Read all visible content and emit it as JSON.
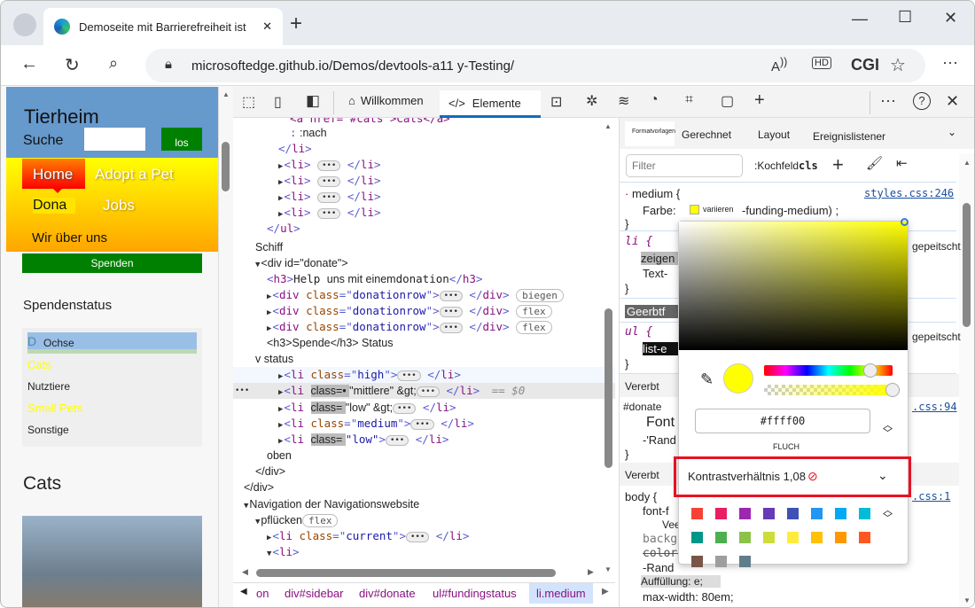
{
  "browser": {
    "tab_title": "Demoseite mit Barrierefreiheit ist",
    "url": "microsoftedge.github.io/Demos/devtools-a11 y-Testing/",
    "profile_label": "CGI"
  },
  "page": {
    "title": "Tierheim",
    "search_label": "Suche",
    "search_button": "los",
    "nav": [
      "Home",
      "Adopt a Pet",
      "Dona",
      "Jobs",
      "Wir über uns"
    ],
    "donate_button": "Spenden",
    "status_heading": "Spendenstatus",
    "status_items": [
      "Ochse",
      "Cats",
      "Nutztiere",
      "Small Pets",
      "Sonstige"
    ],
    "status_first_letter": "D",
    "cats_heading": "Cats"
  },
  "devtools": {
    "tabs": [
      {
        "label": "Willkommen",
        "icon": "home-icon"
      },
      {
        "label": "Elemente",
        "icon": "code-icon"
      }
    ],
    "tool_icons": [
      "console-icon",
      "bug-icon",
      "wifi-icon",
      "performance-icon",
      "memory-chip-icon",
      "application-icon",
      "plus-icon"
    ],
    "dom_lines": [
      {
        "i": 8,
        "p": [
          [
            "tg",
            "<a href=\"#cats\">Cats</a>"
          ]
        ]
      },
      {
        "i": 8,
        "p": [
          [
            "br",
            ":"
          ],
          [
            "tx",
            " :nach"
          ]
        ]
      },
      {
        "i": 7,
        "p": [
          [
            "br",
            "</"
          ],
          [
            "tg",
            "li"
          ],
          [
            "br",
            ">"
          ]
        ]
      },
      {
        "i": 7,
        "a": "r",
        "p": [
          [
            "br",
            "<"
          ],
          [
            "tg",
            "li"
          ],
          [
            "br",
            "> "
          ],
          [
            "e",
            ""
          ],
          [
            "br",
            " </"
          ],
          [
            "tg",
            "li"
          ],
          [
            "br",
            ">"
          ]
        ]
      },
      {
        "i": 7,
        "a": "r",
        "p": [
          [
            "br",
            "<"
          ],
          [
            "tg",
            "li"
          ],
          [
            "br",
            "> "
          ],
          [
            "e",
            ""
          ],
          [
            "br",
            " </"
          ],
          [
            "tg",
            "li"
          ],
          [
            "br",
            ">"
          ]
        ]
      },
      {
        "i": 7,
        "a": "r",
        "p": [
          [
            "br",
            "<"
          ],
          [
            "tg",
            "li"
          ],
          [
            "br",
            "> "
          ],
          [
            "e",
            ""
          ],
          [
            "br",
            " </"
          ],
          [
            "tg",
            "li"
          ],
          [
            "br",
            ">"
          ]
        ]
      },
      {
        "i": 7,
        "a": "r",
        "p": [
          [
            "br",
            "<"
          ],
          [
            "tg",
            "li"
          ],
          [
            "br",
            "> "
          ],
          [
            "e",
            ""
          ],
          [
            "br",
            " </"
          ],
          [
            "tg",
            "li"
          ],
          [
            "br",
            ">"
          ]
        ]
      },
      {
        "i": 6,
        "p": [
          [
            "br",
            "</"
          ],
          [
            "tg",
            "ul"
          ],
          [
            "br",
            ">"
          ]
        ]
      },
      {
        "i": 5,
        "p": [
          [
            "tx",
            "Schiff"
          ]
        ]
      },
      {
        "i": 5,
        "a": "d",
        "p": [
          [
            "tx",
            "<div id=\"donate\">"
          ]
        ]
      },
      {
        "i": 6,
        "p": [
          [
            "br",
            "<"
          ],
          [
            "tg",
            "h3"
          ],
          [
            "br",
            ">"
          ],
          [
            "tx2",
            "Help "
          ],
          [
            "tx",
            "uns mit einem"
          ],
          [
            "tx2",
            "donation"
          ],
          [
            "br",
            "</"
          ],
          [
            "tg",
            "h3"
          ],
          [
            "br",
            ">"
          ]
        ]
      },
      {
        "i": 6,
        "a": "r",
        "p": [
          [
            "br",
            "<"
          ],
          [
            "tg",
            "div "
          ],
          [
            "at",
            "class"
          ],
          [
            "br",
            "=\""
          ],
          [
            "av",
            "donationrow"
          ],
          [
            "br",
            "\">"
          ],
          [
            "e",
            ""
          ],
          [
            "br",
            " </"
          ],
          [
            "tg",
            "div"
          ],
          [
            "br",
            "> "
          ],
          [
            "b",
            "biegen"
          ]
        ]
      },
      {
        "i": 6,
        "a": "r",
        "p": [
          [
            "br",
            "<"
          ],
          [
            "tg",
            "div "
          ],
          [
            "at",
            "class"
          ],
          [
            "br",
            "=\""
          ],
          [
            "av",
            "donationrow"
          ],
          [
            "br",
            "\">"
          ],
          [
            "e",
            ""
          ],
          [
            "br",
            " </"
          ],
          [
            "tg",
            "div"
          ],
          [
            "br",
            "> "
          ],
          [
            "b",
            "flex"
          ]
        ]
      },
      {
        "i": 6,
        "a": "r",
        "p": [
          [
            "br",
            "<"
          ],
          [
            "tg",
            "div "
          ],
          [
            "at",
            "class"
          ],
          [
            "br",
            "=\""
          ],
          [
            "av",
            "donationrow"
          ],
          [
            "br",
            "\">"
          ],
          [
            "e",
            ""
          ],
          [
            "br",
            " </"
          ],
          [
            "tg",
            "div"
          ],
          [
            "br",
            "> "
          ],
          [
            "b",
            "flex"
          ]
        ]
      },
      {
        "i": 6,
        "p": [
          [
            "tx",
            "<h3>Spende</h3>   Status"
          ]
        ]
      },
      {
        "i": 5,
        "p": [
          [
            "tx",
            "v status"
          ]
        ]
      },
      {
        "i": 7,
        "a": "r",
        "p": [
          [
            "br",
            "<"
          ],
          [
            "tg",
            "li "
          ],
          [
            "at",
            "class"
          ],
          [
            "br",
            "=\""
          ],
          [
            "av",
            "high"
          ],
          [
            "br",
            "\">"
          ],
          [
            "e",
            ""
          ],
          [
            "br",
            " </"
          ],
          [
            "tg",
            "li"
          ],
          [
            "br",
            ">"
          ]
        ]
      },
      {
        "i": 7,
        "a": "r",
        "sel": true,
        "p": [
          [
            "br",
            "<"
          ],
          [
            "tg",
            "li "
          ],
          [
            "tx",
            "class=• "
          ],
          [
            "tx",
            " \"mittlere\" &gt;"
          ],
          [
            "e",
            ""
          ],
          [
            "br",
            " </"
          ],
          [
            "tg",
            "li"
          ],
          [
            "br",
            "> "
          ],
          [
            "dim",
            "== $0"
          ]
        ]
      },
      {
        "i": 7,
        "a": "r",
        "p": [
          [
            "br",
            "<"
          ],
          [
            "tg",
            "li "
          ],
          [
            "tx",
            "class=  "
          ],
          [
            "tx",
            " \"low\" &gt;"
          ],
          [
            "e",
            ""
          ],
          [
            "br",
            " </"
          ],
          [
            "tg",
            "li"
          ],
          [
            "br",
            ">"
          ]
        ]
      },
      {
        "i": 7,
        "a": "r",
        "p": [
          [
            "br",
            "<"
          ],
          [
            "tg",
            "li "
          ],
          [
            "at",
            "class"
          ],
          [
            "br",
            "=\""
          ],
          [
            "av",
            "medium"
          ],
          [
            "br",
            "\">"
          ],
          [
            "e",
            ""
          ],
          [
            "br",
            " </"
          ],
          [
            "tg",
            "li"
          ],
          [
            "br",
            ">"
          ]
        ]
      },
      {
        "i": 7,
        "a": "r",
        "p": [
          [
            "br",
            "<"
          ],
          [
            "tg",
            "li "
          ],
          [
            "tx",
            "class=  "
          ],
          [
            "av",
            " \"low\""
          ],
          [
            "br",
            ">"
          ],
          [
            "e",
            ""
          ],
          [
            "br",
            " </"
          ],
          [
            "tg",
            "li"
          ],
          [
            "br",
            ">"
          ]
        ]
      },
      {
        "i": 6,
        "p": [
          [
            "tx",
            "oben"
          ]
        ]
      },
      {
        "i": 5,
        "p": [
          [
            "tx",
            "</div>"
          ]
        ]
      },
      {
        "i": 4,
        "p": [
          [
            "tx",
            "</div>"
          ]
        ]
      },
      {
        "i": 4,
        "a": "d",
        "p": [
          [
            "tx",
            "Navigation der Navigationswebsite"
          ]
        ]
      },
      {
        "i": 5,
        "a": "d",
        "p": [
          [
            "tx",
            "pflücken"
          ],
          [
            "b",
            "flex"
          ]
        ]
      },
      {
        "i": 6,
        "a": "r",
        "p": [
          [
            "br",
            "<"
          ],
          [
            "tg",
            "li "
          ],
          [
            "at",
            "class"
          ],
          [
            "br",
            "=\""
          ],
          [
            "av",
            "current"
          ],
          [
            "br",
            "\">"
          ],
          [
            "e",
            ""
          ],
          [
            "br",
            " </"
          ],
          [
            "tg",
            "li"
          ],
          [
            "br",
            ">"
          ]
        ]
      },
      {
        "i": 6,
        "a": "d",
        "p": [
          [
            "br",
            "<"
          ],
          [
            "tg",
            "li"
          ],
          [
            "br",
            ">"
          ]
        ]
      }
    ],
    "breadcrumbs": [
      "on",
      "div#sidebar",
      "div#donate",
      "ul#fundingstatus",
      "li.medium"
    ],
    "styles_tabs": [
      "Formatvorlagen",
      "Gerechnet",
      "Layout",
      "Ereignislistener"
    ],
    "filter_placeholder": "Filter",
    "hov_label": ":Kochfeld",
    "cls_label": "cls",
    "rules": {
      "r1_selector": "medium {",
      "r1_source": "styles.css:246",
      "r1_prop": "Farbe:",
      "r1_var": "variieren",
      "r1_value": "-funding-medium) ;",
      "r2_selector": "li {",
      "r2_prop1": "zeigen",
      "r2_prop2": "Text-",
      "r2_note": "gepeitscht",
      "inherited1": "Geerbtf",
      "r3_selector": "ul {",
      "r3_prop": "list-e",
      "r3_note": "gepeitscht",
      "inherited2": "Vererbt",
      "r4_selector": "#donate",
      "r4_source": ".css:94",
      "r4_prop1": "Font",
      "r4_prop2": "-'Rand",
      "inherited3": "Vererbt",
      "r5_selector": "body {",
      "r5_source": ".css:1",
      "r5_props": [
        "font-f",
        "Veer",
        "backgr",
        "color:",
        "-Rand",
        "Auffüllung: e;",
        "max-width: 80em;"
      ]
    },
    "picker": {
      "hex": "#ffff00",
      "format": "FLUCH",
      "contrast_label": "Kontrastverhältnis 1,08",
      "hue_position": 0.83,
      "alpha": 1.0,
      "swatches": [
        "#f44336",
        "#e91e63",
        "#9c27b0",
        "#673ab7",
        "#3f51b5",
        "#2196f3",
        "#03a9f4",
        "#00bcd4",
        "#009688",
        "#4caf50",
        "#8bc34a",
        "#cddc39",
        "#ffeb3b",
        "#ffc107",
        "#ff9800",
        "#ff5722",
        "#795548",
        "#9e9e9e",
        "#607d8b"
      ]
    },
    "accent": "#0f6cbd"
  }
}
